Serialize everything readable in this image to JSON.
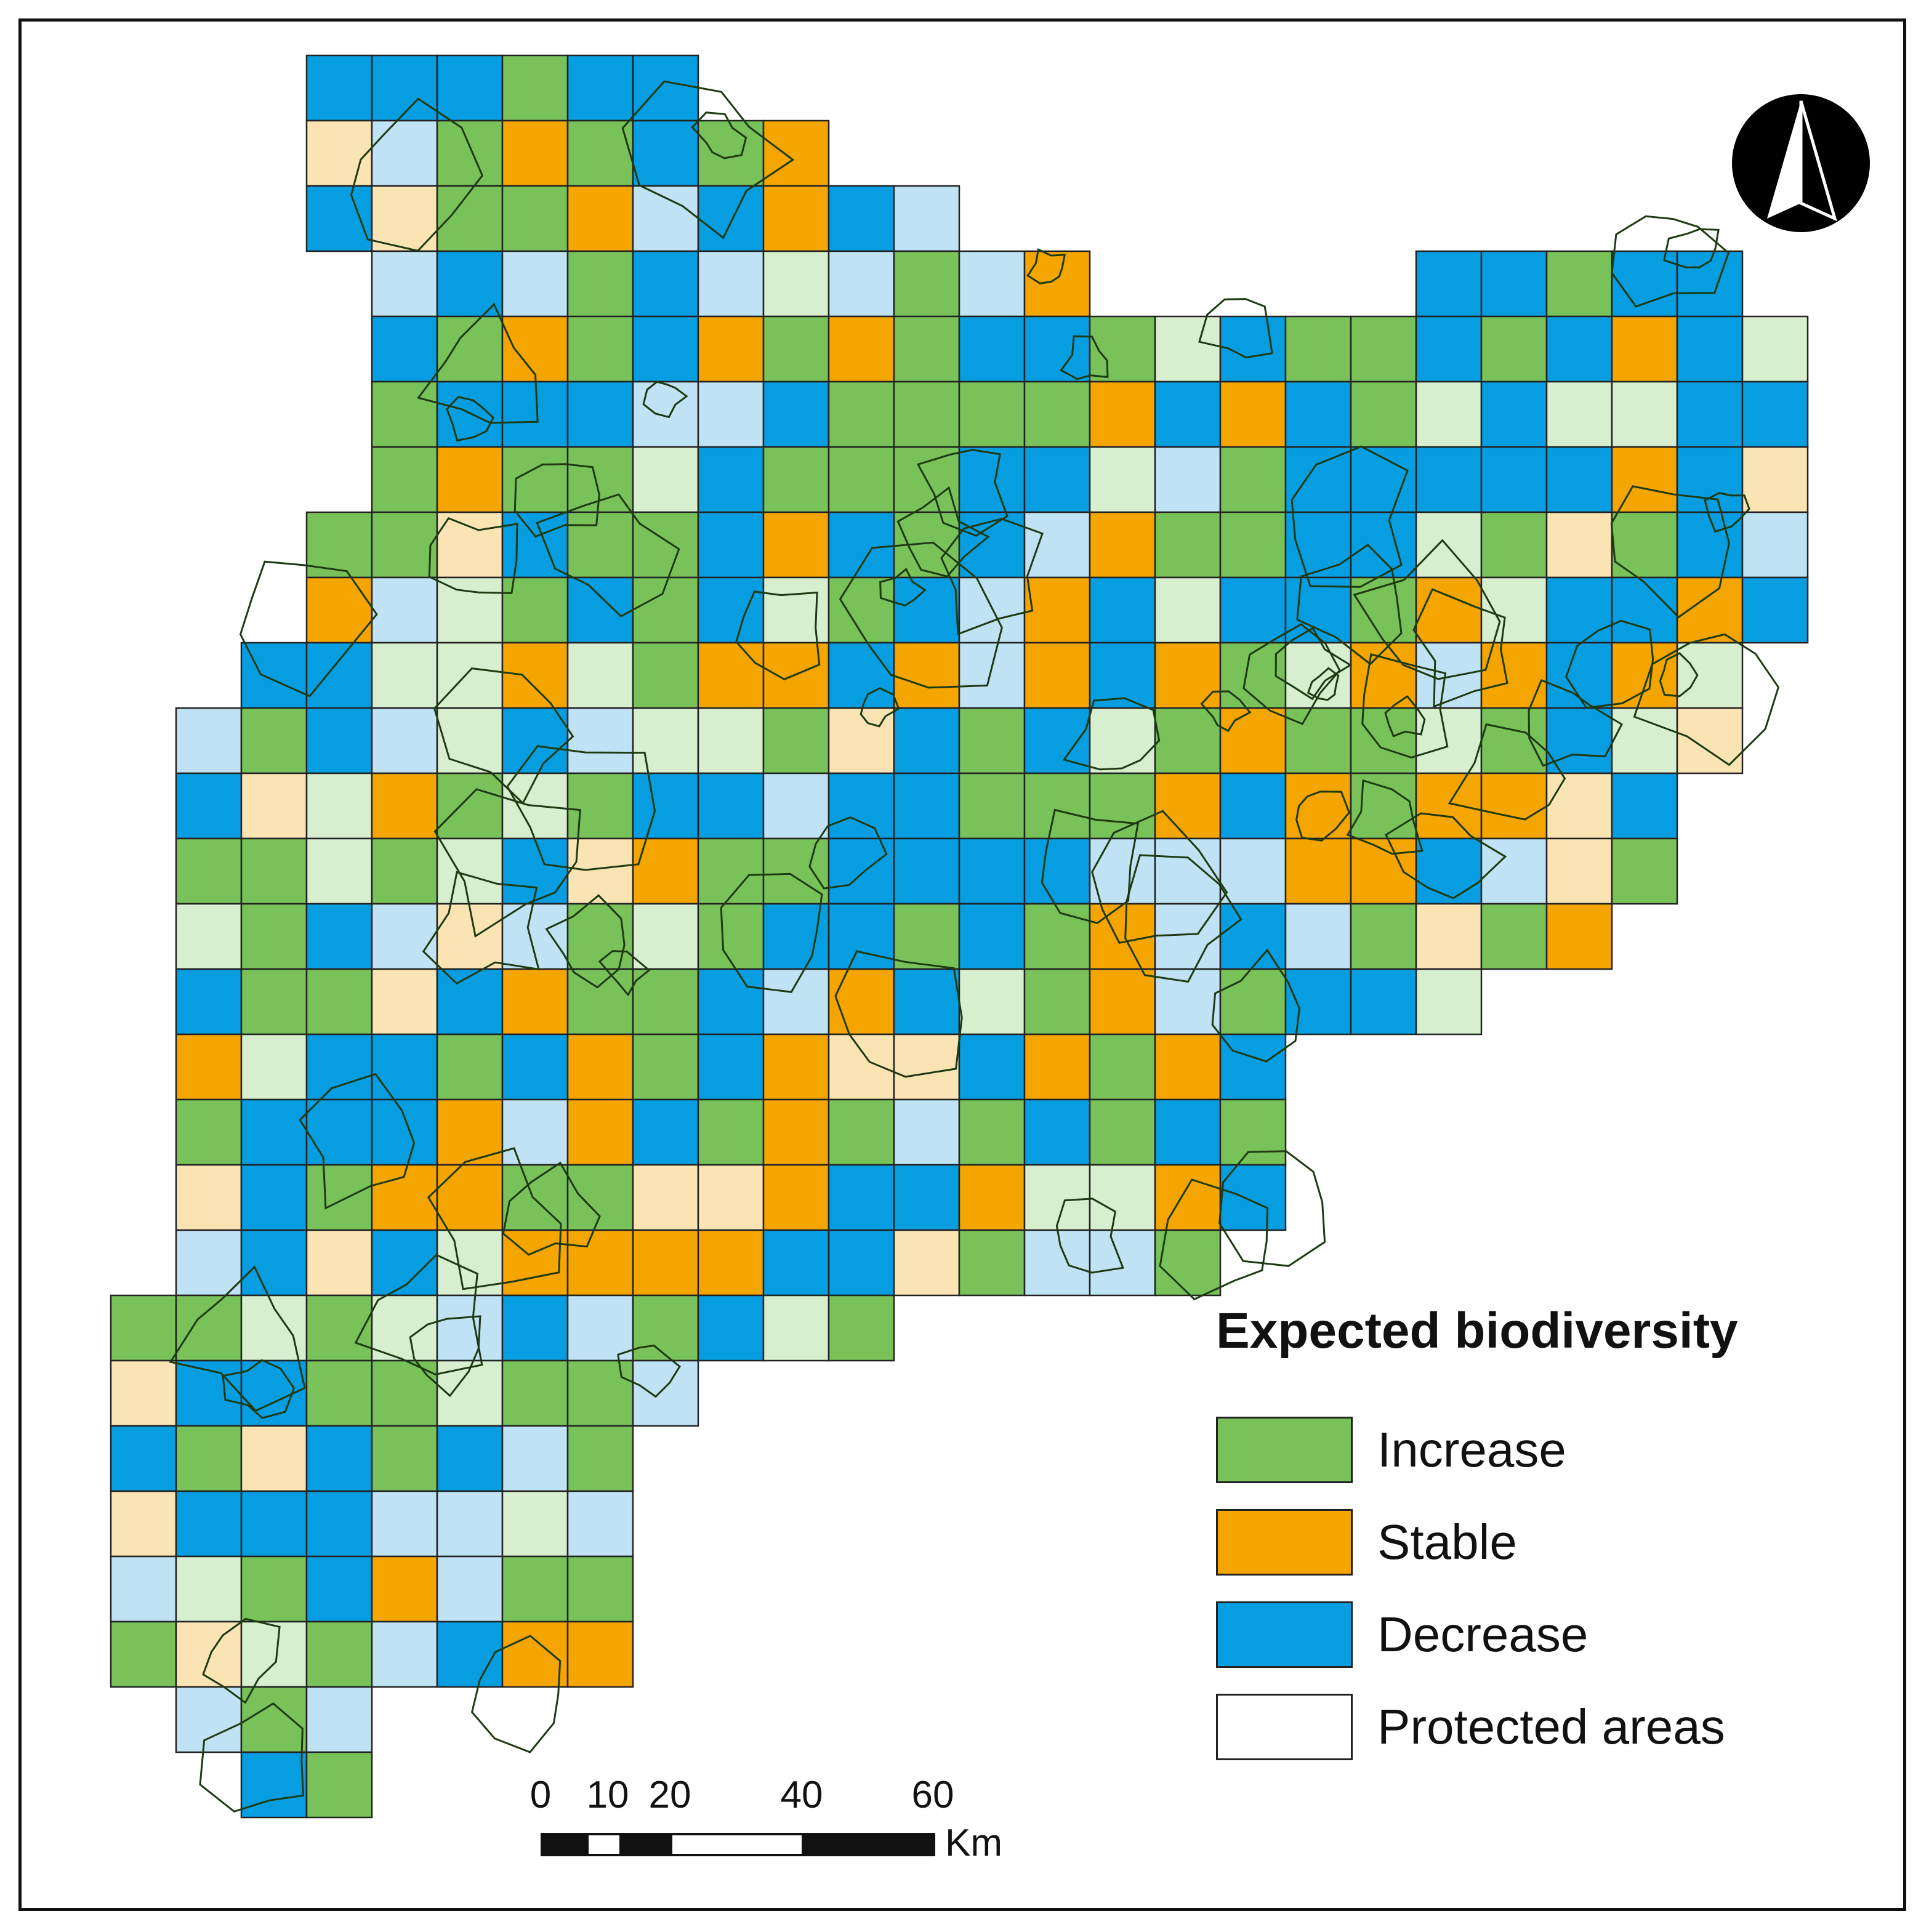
{
  "legend": {
    "title": "Expected biodiversity",
    "items": [
      {
        "label": "Increase",
        "color": "#78c259"
      },
      {
        "label": "Stable",
        "color": "#f5a500"
      },
      {
        "label": "Decrease",
        "color": "#069ee1"
      },
      {
        "label": "Protected areas",
        "color": "#ffffff"
      }
    ]
  },
  "scalebar": {
    "ticks": [
      "0",
      "10",
      "20",
      "40",
      "60"
    ],
    "unit": "Km"
  },
  "north_arrow": {
    "icon": "north-arrow-icon"
  },
  "colors": {
    "increase": "#78c259",
    "stable": "#f5a500",
    "decrease": "#069ee1",
    "protected_increase": "#d8efcf",
    "protected_stable": "#fbe4b4",
    "protected_decrease": "#bfe3f4",
    "grid_line": "#222222",
    "protected_outline": "#1e3a12"
  }
}
